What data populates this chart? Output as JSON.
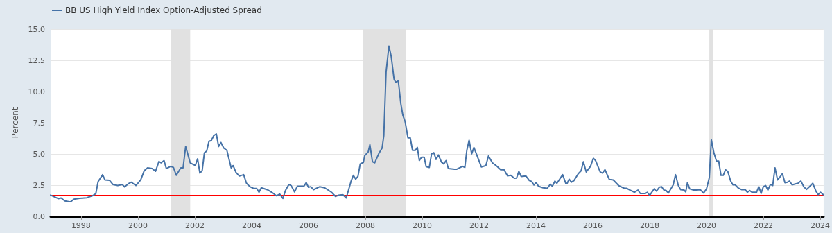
{
  "chart_data": {
    "type": "line",
    "ylabel": "Percent",
    "legend": "top left",
    "grid": "y",
    "marker": "none",
    "line_style": "solid",
    "xlim": [
      1996.93,
      2024.12
    ],
    "xticks": [
      1998,
      2000,
      2002,
      2004,
      2006,
      2008,
      2010,
      2012,
      2014,
      2016,
      2018,
      2020,
      2022,
      2024
    ],
    "ylim": [
      0,
      15
    ],
    "yticks": [
      {
        "value": 0,
        "label": "0.0"
      },
      {
        "value": 2.5,
        "label": "2.5"
      },
      {
        "value": 5,
        "label": "5.0"
      },
      {
        "value": 7.5,
        "label": "7.5"
      },
      {
        "value": 10,
        "label": "10.0"
      },
      {
        "value": 12.5,
        "label": "12.5"
      },
      {
        "value": 15,
        "label": "15.0"
      }
    ],
    "ref_lines": [
      {
        "axis": "y",
        "value": 1.7,
        "color": "#ff0000"
      }
    ],
    "bands": [
      {
        "axis": "x",
        "from": 2001.17,
        "to": 2001.84,
        "color": "#e1e1e1"
      },
      {
        "axis": "x",
        "from": 2007.92,
        "to": 2009.42,
        "color": "#e1e1e1"
      },
      {
        "axis": "x",
        "from": 2020.1,
        "to": 2020.24,
        "color": "#e1e1e1"
      }
    ],
    "series": [
      {
        "name": "BB US High Yield Index Option-Adjusted Spread",
        "color": "#4572a7",
        "x": [
          1996.93,
          1997.2,
          1997.3,
          1997.43,
          1997.63,
          1997.75,
          1997.95,
          1998.2,
          1998.4,
          1998.52,
          1998.6,
          1998.76,
          1998.84,
          1999.0,
          1999.12,
          1999.29,
          1999.45,
          1999.53,
          1999.69,
          1999.77,
          1999.93,
          2000.1,
          2000.22,
          2000.34,
          2000.5,
          2000.62,
          2000.74,
          2000.82,
          2000.92,
          2001.0,
          2001.15,
          2001.25,
          2001.35,
          2001.51,
          2001.59,
          2001.68,
          2001.84,
          2002.02,
          2002.1,
          2002.18,
          2002.26,
          2002.34,
          2002.42,
          2002.5,
          2002.58,
          2002.67,
          2002.76,
          2002.84,
          2002.92,
          2003.02,
          2003.13,
          2003.28,
          2003.35,
          2003.45,
          2003.57,
          2003.72,
          2003.82,
          2003.94,
          2004.06,
          2004.18,
          2004.26,
          2004.34,
          2004.55,
          2004.71,
          2004.87,
          2004.99,
          2005.1,
          2005.19,
          2005.31,
          2005.39,
          2005.51,
          2005.61,
          2005.84,
          2005.92,
          2006.0,
          2006.08,
          2006.18,
          2006.4,
          2006.57,
          2006.81,
          2006.95,
          2007.05,
          2007.21,
          2007.33,
          2007.5,
          2007.58,
          2007.66,
          2007.74,
          2007.82,
          2007.93,
          2007.98,
          2008.1,
          2008.16,
          2008.25,
          2008.33,
          2008.47,
          2008.59,
          2008.65,
          2008.73,
          2008.83,
          2008.91,
          2009.01,
          2009.07,
          2009.16,
          2009.25,
          2009.32,
          2009.4,
          2009.5,
          2009.58,
          2009.66,
          2009.76,
          2009.83,
          2009.9,
          2009.98,
          2010.07,
          2010.14,
          2010.25,
          2010.33,
          2010.41,
          2010.49,
          2010.57,
          2010.68,
          2010.76,
          2010.84,
          2010.92,
          2011.14,
          2011.22,
          2011.42,
          2011.5,
          2011.57,
          2011.65,
          2011.74,
          2011.82,
          2011.95,
          2012.08,
          2012.24,
          2012.33,
          2012.47,
          2012.63,
          2012.76,
          2012.88,
          2013.0,
          2013.12,
          2013.24,
          2013.32,
          2013.4,
          2013.48,
          2013.65,
          2013.77,
          2013.85,
          2013.93,
          2014.01,
          2014.09,
          2014.25,
          2014.4,
          2014.5,
          2014.58,
          2014.67,
          2014.74,
          2014.94,
          2015.05,
          2015.1,
          2015.17,
          2015.25,
          2015.34,
          2015.49,
          2015.59,
          2015.67,
          2015.77,
          2015.92,
          2016.02,
          2016.1,
          2016.26,
          2016.34,
          2016.43,
          2016.58,
          2016.72,
          2016.91,
          2017.11,
          2017.19,
          2017.31,
          2017.47,
          2017.59,
          2017.67,
          2017.84,
          2017.92,
          2018.0,
          2018.16,
          2018.24,
          2018.34,
          2018.42,
          2018.5,
          2018.58,
          2018.66,
          2018.77,
          2018.83,
          2018.91,
          2019.01,
          2019.09,
          2019.21,
          2019.27,
          2019.33,
          2019.41,
          2019.54,
          2019.66,
          2019.78,
          2019.9,
          2020.0,
          2020.1,
          2020.17,
          2020.26,
          2020.35,
          2020.43,
          2020.51,
          2020.59,
          2020.67,
          2020.75,
          2020.85,
          2020.93,
          2021.01,
          2021.11,
          2021.23,
          2021.36,
          2021.44,
          2021.52,
          2021.6,
          2021.76,
          2021.84,
          2021.92,
          2022.0,
          2022.08,
          2022.16,
          2022.25,
          2022.33,
          2022.41,
          2022.5,
          2022.57,
          2022.67,
          2022.76,
          2022.85,
          2022.92,
          2023.01,
          2023.22,
          2023.32,
          2023.42,
          2023.52,
          2023.62,
          2023.74,
          2023.85,
          2023.93,
          2024.01,
          2024.11
        ],
        "values": [
          1.7,
          1.42,
          1.47,
          1.24,
          1.16,
          1.38,
          1.45,
          1.49,
          1.65,
          1.82,
          2.78,
          3.34,
          2.92,
          2.89,
          2.56,
          2.47,
          2.56,
          2.36,
          2.65,
          2.74,
          2.47,
          2.92,
          3.65,
          3.89,
          3.83,
          3.61,
          4.4,
          4.29,
          4.47,
          3.83,
          4.01,
          3.92,
          3.29,
          3.89,
          3.89,
          5.59,
          4.29,
          4.07,
          4.61,
          3.47,
          3.65,
          5.1,
          5.23,
          6.01,
          6.07,
          6.47,
          6.61,
          5.59,
          5.92,
          5.47,
          5.29,
          3.89,
          4.07,
          3.52,
          3.23,
          3.34,
          2.65,
          2.38,
          2.25,
          2.23,
          1.93,
          2.29,
          2.14,
          1.93,
          1.65,
          1.78,
          1.44,
          2.07,
          2.56,
          2.47,
          1.96,
          2.42,
          2.42,
          2.71,
          2.33,
          2.38,
          2.14,
          2.38,
          2.29,
          1.93,
          1.6,
          1.69,
          1.74,
          1.47,
          2.83,
          3.29,
          2.98,
          3.2,
          4.2,
          4.32,
          4.87,
          5.16,
          5.74,
          4.38,
          4.29,
          5.01,
          5.47,
          6.47,
          11.55,
          13.64,
          12.82,
          11.0,
          10.74,
          10.86,
          9.01,
          8.1,
          7.59,
          6.29,
          6.29,
          5.29,
          5.29,
          5.52,
          4.47,
          4.74,
          4.74,
          3.98,
          3.92,
          5.01,
          5.1,
          4.56,
          4.92,
          4.34,
          4.2,
          4.47,
          3.83,
          3.78,
          3.78,
          4.01,
          3.92,
          5.29,
          6.1,
          5.01,
          5.52,
          4.74,
          3.96,
          4.07,
          4.83,
          4.29,
          4.01,
          3.74,
          3.74,
          3.25,
          3.29,
          3.05,
          3.07,
          3.6,
          3.2,
          3.23,
          2.87,
          2.8,
          2.51,
          2.71,
          2.42,
          2.29,
          2.25,
          2.56,
          2.42,
          2.83,
          2.65,
          3.34,
          2.65,
          2.65,
          2.98,
          2.74,
          2.87,
          3.42,
          3.65,
          4.38,
          3.56,
          4.01,
          4.65,
          4.47,
          3.56,
          3.47,
          3.74,
          2.96,
          2.92,
          2.47,
          2.25,
          2.25,
          2.11,
          1.93,
          2.11,
          1.83,
          1.83,
          1.93,
          1.69,
          2.2,
          2.02,
          2.33,
          2.38,
          2.11,
          2.07,
          1.87,
          2.29,
          2.53,
          3.34,
          2.47,
          2.14,
          2.11,
          1.96,
          2.71,
          2.2,
          2.11,
          2.11,
          2.14,
          1.87,
          2.2,
          3.11,
          6.14,
          5.1,
          4.43,
          4.43,
          3.29,
          3.29,
          3.74,
          3.6,
          2.83,
          2.53,
          2.53,
          2.29,
          2.14,
          2.14,
          1.93,
          2.07,
          1.93,
          1.93,
          2.38,
          1.83,
          2.38,
          2.47,
          2.11,
          2.56,
          2.47,
          3.89,
          2.92,
          3.11,
          3.42,
          2.69,
          2.74,
          2.83,
          2.53,
          2.65,
          2.83,
          2.38,
          2.16,
          2.38,
          2.65,
          2.02,
          1.74,
          1.93,
          1.74
        ]
      }
    ]
  }
}
